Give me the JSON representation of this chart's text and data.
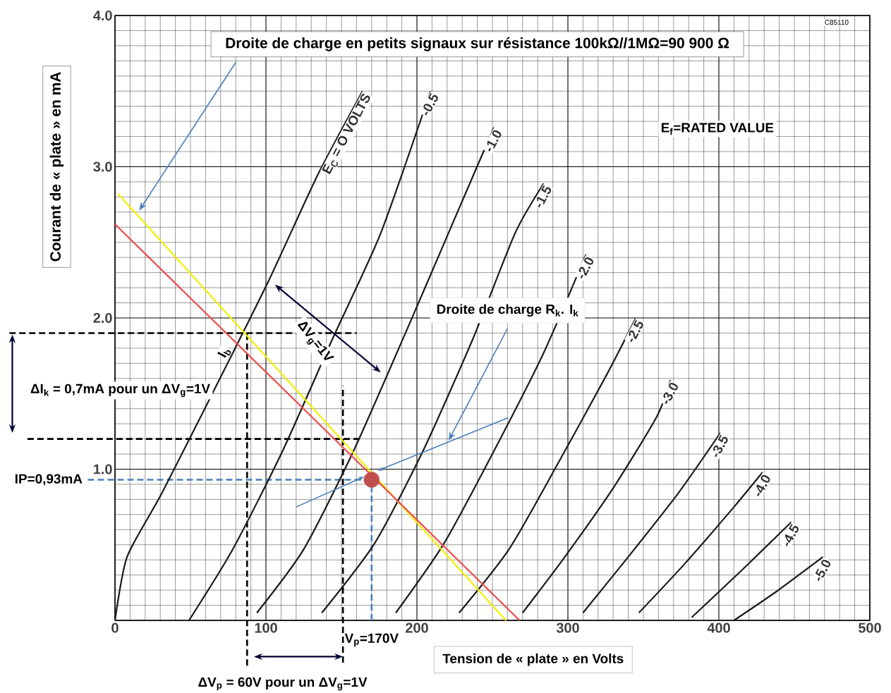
{
  "chart_data": {
    "type": "line",
    "title": "Droite de charge en petits signaux sur résistance 100kΩ//1MΩ=90 900 Ω",
    "xlabel": "Tension de « plate » en Volts",
    "ylabel": "Courant de « plate » en mA",
    "xlim": [
      0,
      500
    ],
    "ylim": [
      0,
      4.0
    ],
    "xticks": [
      0,
      100,
      200,
      300,
      400,
      500
    ],
    "yticks": [
      {
        "value": 0,
        "label": null
      },
      {
        "value": 1,
        "label": "1.0"
      },
      {
        "value": 2,
        "label": "2.0"
      },
      {
        "value": 3,
        "label": "3.0"
      },
      {
        "value": 4,
        "label": "4.0"
      }
    ],
    "grid": true,
    "marker": "none",
    "line_style": "solid",
    "series": [
      {
        "name": "E$_{C}$ = O VOLTS",
        "color": "#1a1a1a",
        "x": [
          0,
          8,
          31,
          64,
          101.5,
          134,
          164
        ],
        "values": [
          0,
          0.42,
          0.84,
          1.49,
          2.24,
          2.94,
          3.5
        ]
      },
      {
        "name": "-0.5",
        "color": "#1a1a1a",
        "x": [
          49,
          78,
          111,
          144,
          176,
          209
        ],
        "values": [
          0,
          0.47,
          1.12,
          1.86,
          2.56,
          3.5
        ]
      },
      {
        "name": "-1.0",
        "color": "#1a1a1a",
        "x": [
          94,
          125,
          158,
          195,
          223,
          251
        ],
        "values": [
          0.05,
          0.47,
          1.12,
          1.96,
          2.61,
          3.26
        ]
      },
      {
        "name": "-1.5",
        "color": "#1a1a1a",
        "x": [
          137,
          172,
          204,
          237,
          265,
          284
        ],
        "values": [
          0.05,
          0.51,
          1.12,
          1.86,
          2.56,
          2.89
        ]
      },
      {
        "name": "-2.0",
        "color": "#1a1a1a",
        "x": [
          186,
          218,
          251,
          284,
          312
        ],
        "values": [
          0.05,
          0.51,
          1.12,
          1.77,
          2.42
        ]
      },
      {
        "name": "-2.5",
        "color": "#1a1a1a",
        "x": [
          228,
          261,
          293,
          326,
          345
        ],
        "values": [
          0.05,
          0.47,
          1.03,
          1.63,
          2.0
        ]
      },
      {
        "name": "-3.0",
        "color": "#1a1a1a",
        "x": [
          270,
          298,
          331,
          359,
          368
        ],
        "values": [
          0.05,
          0.42,
          0.89,
          1.35,
          1.59
        ]
      },
      {
        "name": "-3.5",
        "color": "#1a1a1a",
        "x": [
          310,
          340,
          373,
          401
        ],
        "values": [
          0.05,
          0.42,
          0.84,
          1.24
        ]
      },
      {
        "name": "-4.0",
        "color": "#1a1a1a",
        "x": [
          347,
          377,
          410,
          429
        ],
        "values": [
          0.05,
          0.37,
          0.75,
          0.98
        ]
      },
      {
        "name": "-4.5",
        "color": "#1a1a1a",
        "x": [
          382,
          415,
          448
        ],
        "values": [
          0.02,
          0.33,
          0.65
        ]
      },
      {
        "name": "-5.0",
        "color": "#1a1a1a",
        "x": [
          410,
          438,
          469
        ],
        "values": [
          0,
          0.19,
          0.42
        ]
      },
      {
        "color": "#f0f000",
        "x": [
          2,
          259
        ],
        "values": [
          2.82,
          0
        ]
      },
      {
        "color": "#ee4b4b",
        "x": [
          0,
          268
        ],
        "values": [
          2.62,
          0
        ]
      },
      {
        "type": "scatter",
        "color": "#c0504d",
        "x": [
          170
        ],
        "values": [
          0.93
        ]
      }
    ],
    "ref_lines": [
      {
        "axis": "y",
        "value": 1.9,
        "color": "#000000",
        "line_style": "dashed"
      },
      {
        "axis": "y",
        "value": 1.2,
        "color": "#000000",
        "line_style": "dashed"
      },
      {
        "axis": "x",
        "value": 87.5,
        "color": "#000000",
        "line_style": "dashed"
      },
      {
        "axis": "x",
        "value": 151,
        "color": "#000000",
        "line_style": "dashed"
      },
      {
        "axis": "y",
        "value": 0.93,
        "color": "#4a7ebb",
        "line_style": "dashed"
      },
      {
        "axis": "x",
        "value": 170,
        "color": "#4a7ebb",
        "line_style": "dashed"
      }
    ],
    "annotations": [
      "Droite de charge R$_{k}$. I$_{k}$",
      "E$_{f}$=RATED VALUE",
      "ΔV$_{g}$=1V",
      "ΔI$_{k}$ = 0,7mA pour un ΔV$_{g}$=1V",
      "IP=0,93mA",
      {
        "text": "V$_{p}$=170V",
        "x": 170
      },
      "ΔV$_{p}$ = 60V pour un ΔV$_{g}$=1V",
      "I$_{b}$",
      "C85110"
    ]
  }
}
